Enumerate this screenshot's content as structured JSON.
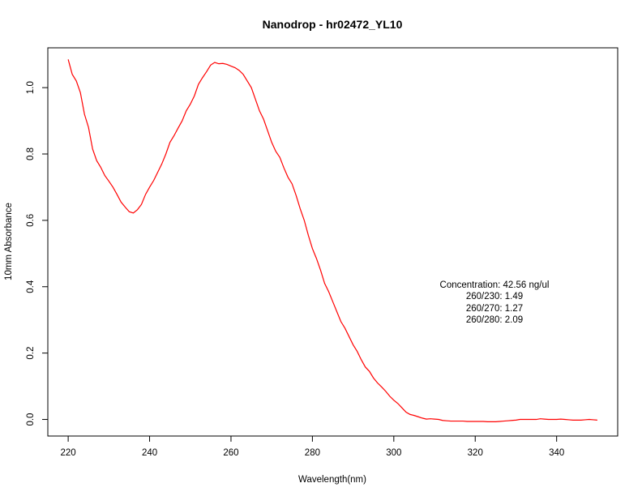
{
  "chart_data": {
    "type": "line",
    "title": "Nanodrop - hr02472_YL10",
    "xlabel": "Wavelength(nm)",
    "ylabel": "10mm Absorbance",
    "xlim": [
      215,
      355
    ],
    "ylim": [
      -0.05,
      1.12
    ],
    "xticks": [
      220,
      240,
      260,
      280,
      300,
      320,
      340
    ],
    "yticks": [
      0.0,
      0.2,
      0.4,
      0.6,
      0.8,
      1.0
    ],
    "xtick_labels": [
      "220",
      "240",
      "260",
      "280",
      "300",
      "320",
      "340"
    ],
    "ytick_labels": [
      "0.0",
      "0.2",
      "0.4",
      "0.6",
      "0.8",
      "1.0"
    ],
    "grid": false,
    "line_color": "#ff0000",
    "annotations": [
      "Concentration: 42.56 ng/ul",
      "260/230: 1.49",
      "260/270: 1.27",
      "260/280: 2.09"
    ],
    "series": [
      {
        "x": [
          220,
          221,
          222,
          223,
          224,
          225,
          226,
          227,
          228,
          229,
          230,
          231,
          232,
          233,
          234,
          235,
          236,
          237,
          238,
          239,
          240,
          241,
          242,
          243,
          244,
          245,
          246,
          247,
          248,
          249,
          250,
          251,
          252,
          253,
          254,
          255,
          256,
          257,
          258,
          259,
          260,
          261,
          262,
          263,
          264,
          265,
          266,
          267,
          268,
          269,
          270,
          271,
          272,
          273,
          274,
          275,
          276,
          277,
          278,
          279,
          280,
          281,
          282,
          283,
          284,
          285,
          286,
          287,
          288,
          289,
          290,
          291,
          292,
          293,
          294,
          295,
          296,
          297,
          298,
          299,
          300,
          301,
          302,
          303,
          304,
          305,
          306,
          307,
          308,
          309,
          310,
          311,
          312,
          313,
          314,
          315,
          316,
          317,
          318,
          319,
          320,
          321,
          322,
          323,
          324,
          325,
          326,
          327,
          328,
          329,
          330,
          331,
          332,
          333,
          334,
          335,
          336,
          337,
          338,
          339,
          340,
          341,
          342,
          343,
          344,
          345,
          346,
          347,
          348,
          349,
          350
        ],
        "y": [
          1.085,
          1.04,
          1.02,
          0.985,
          0.92,
          0.88,
          0.815,
          0.78,
          0.76,
          0.735,
          0.718,
          0.7,
          0.678,
          0.655,
          0.64,
          0.626,
          0.622,
          0.632,
          0.648,
          0.678,
          0.7,
          0.72,
          0.745,
          0.77,
          0.8,
          0.835,
          0.855,
          0.878,
          0.9,
          0.93,
          0.95,
          0.975,
          1.01,
          1.03,
          1.048,
          1.068,
          1.076,
          1.072,
          1.073,
          1.07,
          1.065,
          1.06,
          1.052,
          1.04,
          1.02,
          1.0,
          0.965,
          0.93,
          0.905,
          0.87,
          0.835,
          0.808,
          0.79,
          0.758,
          0.73,
          0.71,
          0.675,
          0.635,
          0.6,
          0.555,
          0.515,
          0.485,
          0.45,
          0.41,
          0.385,
          0.355,
          0.325,
          0.295,
          0.275,
          0.25,
          0.225,
          0.205,
          0.18,
          0.158,
          0.145,
          0.125,
          0.11,
          0.098,
          0.085,
          0.07,
          0.058,
          0.048,
          0.035,
          0.022,
          0.015,
          0.012,
          0.008,
          0.004,
          0.001,
          0.002,
          0.001,
          0.0,
          -0.003,
          -0.004,
          -0.005,
          -0.005,
          -0.005,
          -0.005,
          -0.006,
          -0.006,
          -0.006,
          -0.006,
          -0.006,
          -0.007,
          -0.007,
          -0.007,
          -0.006,
          -0.005,
          -0.004,
          -0.003,
          -0.002,
          0.0,
          0.0,
          0.0,
          0.0,
          0.0,
          0.002,
          0.001,
          0.0,
          0.0,
          0.0,
          0.001,
          0.0,
          -0.001,
          -0.002,
          -0.002,
          -0.002,
          -0.001,
          0.0,
          -0.001,
          -0.002
        ]
      }
    ]
  }
}
